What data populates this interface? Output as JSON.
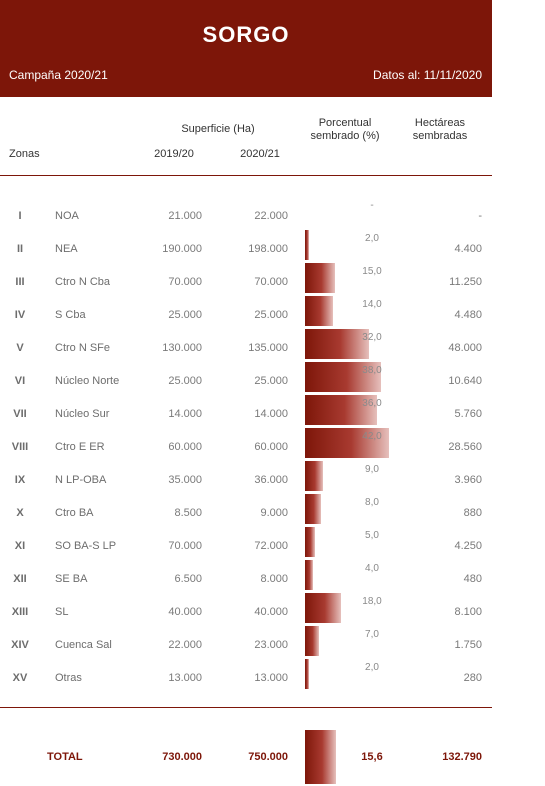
{
  "header": {
    "title": "SORGO",
    "campaign": "Campaña 2020/21",
    "date": "Datos al: 11/11/2020"
  },
  "columns": {
    "zonas": "Zonas",
    "superficie": "Superficie (Ha)",
    "y1": "2019/20",
    "y2": "2020/21",
    "pct_line1": "Porcentual",
    "pct_line2": "sembrado (%)",
    "ha_line1": "Hectáreas",
    "ha_line2": "sembradas"
  },
  "rows": [
    {
      "roman": "I",
      "zone": "NOA",
      "s1": "21.000",
      "s2": "22.000",
      "pct_label": "-",
      "pct": 0,
      "ha": "-"
    },
    {
      "roman": "II",
      "zone": "NEA",
      "s1": "190.000",
      "s2": "198.000",
      "pct_label": "2,0",
      "pct": 2.0,
      "ha": "4.400"
    },
    {
      "roman": "III",
      "zone": "Ctro N Cba",
      "s1": "70.000",
      "s2": "70.000",
      "pct_label": "15,0",
      "pct": 15.0,
      "ha": "11.250"
    },
    {
      "roman": "IV",
      "zone": "S Cba",
      "s1": "25.000",
      "s2": "25.000",
      "pct_label": "14,0",
      "pct": 14.0,
      "ha": "4.480"
    },
    {
      "roman": "V",
      "zone": "Ctro N SFe",
      "s1": "130.000",
      "s2": "135.000",
      "pct_label": "32,0",
      "pct": 32.0,
      "ha": "48.000"
    },
    {
      "roman": "VI",
      "zone": "Núcleo Norte",
      "s1": "25.000",
      "s2": "25.000",
      "pct_label": "38,0",
      "pct": 38.0,
      "ha": "10.640"
    },
    {
      "roman": "VII",
      "zone": "Núcleo Sur",
      "s1": "14.000",
      "s2": "14.000",
      "pct_label": "36,0",
      "pct": 36.0,
      "ha": "5.760"
    },
    {
      "roman": "VIII",
      "zone": "Ctro E ER",
      "s1": "60.000",
      "s2": "60.000",
      "pct_label": "42,0",
      "pct": 42.0,
      "ha": "28.560"
    },
    {
      "roman": "IX",
      "zone": "N LP-OBA",
      "s1": "35.000",
      "s2": "36.000",
      "pct_label": "9,0",
      "pct": 9.0,
      "ha": "3.960"
    },
    {
      "roman": "X",
      "zone": "Ctro BA",
      "s1": "8.500",
      "s2": "9.000",
      "pct_label": "8,0",
      "pct": 8.0,
      "ha": "880"
    },
    {
      "roman": "XI",
      "zone": "SO BA-S LP",
      "s1": "70.000",
      "s2": "72.000",
      "pct_label": "5,0",
      "pct": 5.0,
      "ha": "4.250"
    },
    {
      "roman": "XII",
      "zone": "SE BA",
      "s1": "6.500",
      "s2": "8.000",
      "pct_label": "4,0",
      "pct": 4.0,
      "ha": "480"
    },
    {
      "roman": "XIII",
      "zone": "SL",
      "s1": "40.000",
      "s2": "40.000",
      "pct_label": "18,0",
      "pct": 18.0,
      "ha": "8.100"
    },
    {
      "roman": "XIV",
      "zone": "Cuenca Sal",
      "s1": "22.000",
      "s2": "23.000",
      "pct_label": "7,0",
      "pct": 7.0,
      "ha": "1.750"
    },
    {
      "roman": "XV",
      "zone": "Otras",
      "s1": "13.000",
      "s2": "13.000",
      "pct_label": "2,0",
      "pct": 2.0,
      "ha": "280"
    }
  ],
  "total": {
    "label": "TOTAL",
    "s1": "730.000",
    "s2": "750.000",
    "pct_label": "15,6",
    "pct": 15.6,
    "ha": "132.790"
  },
  "colors": {
    "accent": "#7d1609"
  }
}
